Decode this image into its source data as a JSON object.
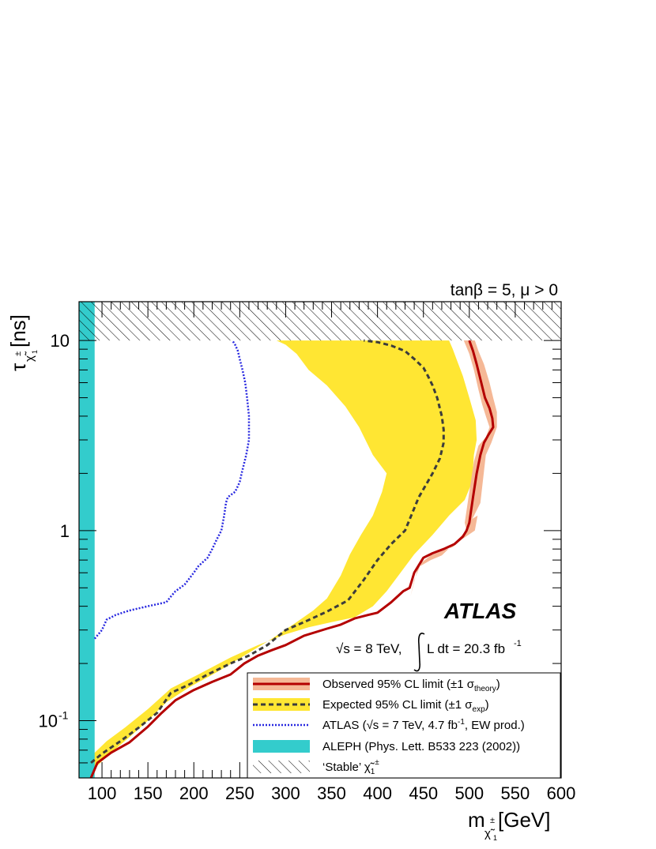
{
  "chart_data": {
    "type": "line",
    "title": "",
    "top_annotation": "tanβ = 5, μ > 0",
    "experiment_label": "ATLAS",
    "energy_label": "√s = 8 TeV,",
    "lumi_label": "L dt = 20.3 fb",
    "lumi_superscript": "-1",
    "xlabel_main": "m",
    "xlabel_sub": "χ̃",
    "xlabel_sub_index": "1",
    "xlabel_sup": "±",
    "xlabel_unit": " [GeV]",
    "ylabel_main": "τ",
    "ylabel_sub": "χ̃",
    "ylabel_sub_index": "1",
    "ylabel_sup": "±",
    "ylabel_unit": " [ns]",
    "x_scale": "linear",
    "y_scale": "log",
    "xlim": [
      75,
      600
    ],
    "ylim": [
      0.05,
      16
    ],
    "x_ticks": [
      "100",
      "150",
      "200",
      "250",
      "300",
      "350",
      "400",
      "450",
      "500",
      "550",
      "600"
    ],
    "x_tick_values": [
      100,
      150,
      200,
      250,
      300,
      350,
      400,
      450,
      500,
      550,
      600
    ],
    "y_tick_labels": [
      {
        "value": 0.1,
        "base": "10",
        "exp": "-1"
      },
      {
        "value": 1,
        "base": "1",
        "exp": ""
      },
      {
        "value": 10,
        "base": "10",
        "exp": ""
      }
    ],
    "legend_position": "bottom-right",
    "legend": [
      {
        "text": "Observed 95% CL limit (±1 σ",
        "sub": "theory",
        "tail": ")",
        "style": "observed"
      },
      {
        "text": "Expected 95% CL limit (±1 σ",
        "sub": "exp",
        "tail": ")",
        "style": "expected"
      },
      {
        "text": "ATLAS (√s = 7 TeV, 4.7 fb",
        "sup": "-1",
        "tail": ", EW prod.)",
        "style": "atlas7"
      },
      {
        "text": "ALEPH (Phys. Lett. B533 223 (2002))",
        "style": "aleph"
      },
      {
        "text": "‘Stable’ ",
        "math": "χ̃",
        "math_sub": "1",
        "math_sup": "±",
        "style": "stable"
      }
    ],
    "colors": {
      "observed_line": "#b40000",
      "observed_band": "#f5b896",
      "expected_band": "#ffe633",
      "expected_line": "#3c3c3c",
      "atlas7_line": "#2828e0",
      "aleph": "#33cccc",
      "hatch": "#000000"
    },
    "stable_region": {
      "x_range": [
        75,
        600
      ],
      "y_range": [
        10,
        16
      ]
    },
    "aleph_region": {
      "x_range": [
        75,
        92
      ],
      "y_range": [
        0.05,
        16
      ]
    },
    "series": [
      {
        "name": "Observed 95% CL limit",
        "style": "observed",
        "x": [
          88,
          95,
          110,
          130,
          150,
          165,
          180,
          200,
          220,
          240,
          255,
          270,
          285,
          300,
          320,
          345,
          360,
          375,
          390,
          400,
          415,
          428,
          435,
          440,
          450,
          460,
          472,
          484,
          493,
          497,
          500,
          504,
          508,
          512,
          516,
          521,
          526,
          525,
          522,
          517,
          513,
          508,
          504,
          500
        ],
        "y": [
          0.05,
          0.06,
          0.068,
          0.077,
          0.093,
          0.11,
          0.128,
          0.145,
          0.16,
          0.175,
          0.2,
          0.22,
          0.235,
          0.25,
          0.28,
          0.305,
          0.32,
          0.345,
          0.36,
          0.37,
          0.42,
          0.48,
          0.5,
          0.6,
          0.72,
          0.76,
          0.8,
          0.85,
          0.93,
          1.0,
          1.1,
          1.5,
          2.0,
          2.5,
          2.9,
          3.2,
          3.5,
          3.9,
          4.4,
          5.0,
          6.0,
          7.5,
          8.8,
          10
        ]
      },
      {
        "name": "Expected 95% CL limit",
        "style": "expected",
        "x": [
          88,
          100,
          120,
          140,
          160,
          175,
          195,
          215,
          240,
          260,
          280,
          300,
          320,
          345,
          368,
          385,
          400,
          415,
          430,
          445,
          460,
          468,
          472,
          472,
          470,
          465,
          460,
          455,
          450,
          440,
          430,
          415,
          400,
          385
        ],
        "y": [
          0.06,
          0.067,
          0.078,
          0.092,
          0.11,
          0.14,
          0.155,
          0.175,
          0.2,
          0.22,
          0.25,
          0.3,
          0.33,
          0.375,
          0.43,
          0.55,
          0.7,
          0.85,
          1.0,
          1.5,
          2.0,
          2.4,
          2.9,
          3.4,
          4.0,
          5.0,
          5.8,
          6.5,
          7.2,
          8.0,
          8.8,
          9.4,
          9.8,
          10
        ]
      },
      {
        "name": "ATLAS (√s = 7 TeV, 4.7 fb⁻¹, EW prod.)",
        "style": "atlas7",
        "x": [
          92,
          100,
          105,
          115,
          130,
          150,
          170,
          175,
          180,
          190,
          200,
          205,
          215,
          220,
          225,
          230,
          233,
          235,
          237,
          245,
          250,
          252,
          257,
          260,
          260,
          258,
          256,
          253,
          250,
          248,
          245,
          242
        ],
        "y": [
          0.27,
          0.3,
          0.34,
          0.36,
          0.38,
          0.4,
          0.42,
          0.45,
          0.48,
          0.52,
          0.6,
          0.65,
          0.72,
          0.8,
          0.9,
          1.0,
          1.2,
          1.4,
          1.5,
          1.6,
          1.8,
          2.0,
          2.5,
          3.0,
          4.0,
          5.0,
          6.0,
          7.0,
          8.0,
          8.8,
          9.5,
          10
        ]
      }
    ],
    "bands": {
      "observed_band": {
        "outer": [
          [
            497,
            1.0
          ],
          [
            512,
            1.4
          ],
          [
            518,
            2.5
          ],
          [
            524,
            2.9
          ],
          [
            530,
            3.5
          ],
          [
            530,
            4.2
          ],
          [
            526,
            5.0
          ],
          [
            522,
            6.0
          ],
          [
            516,
            7.5
          ],
          [
            510,
            8.8
          ],
          [
            506,
            10
          ]
        ],
        "inner": [
          [
            494,
            10
          ],
          [
            500,
            8.5
          ],
          [
            505,
            7.0
          ],
          [
            510,
            5.5
          ],
          [
            514,
            4.6
          ],
          [
            518,
            4.0
          ],
          [
            522,
            3.5
          ],
          [
            518,
            3.1
          ],
          [
            510,
            2.8
          ],
          [
            505,
            2.3
          ],
          [
            500,
            1.6
          ],
          [
            495,
            1.1
          ]
        ],
        "lower_outer": [
          [
            440,
            0.55
          ],
          [
            448,
            0.68
          ],
          [
            458,
            0.74
          ],
          [
            470,
            0.78
          ],
          [
            482,
            0.82
          ],
          [
            492,
            0.9
          ],
          [
            506,
            1.0
          ],
          [
            509,
            1.2
          ]
        ],
        "lower_inner": [
          [
            503,
            1.15
          ],
          [
            495,
            0.98
          ],
          [
            485,
            0.87
          ],
          [
            470,
            0.74
          ],
          [
            458,
            0.7
          ],
          [
            444,
            0.64
          ],
          [
            436,
            0.45
          ]
        ]
      },
      "expected_band": {
        "outer": [
          [
            88,
            0.065
          ],
          [
            105,
            0.078
          ],
          [
            125,
            0.092
          ],
          [
            150,
            0.115
          ],
          [
            175,
            0.148
          ],
          [
            205,
            0.175
          ],
          [
            240,
            0.215
          ],
          [
            270,
            0.25
          ],
          [
            300,
            0.285
          ],
          [
            325,
            0.31
          ],
          [
            350,
            0.33
          ],
          [
            375,
            0.35
          ],
          [
            395,
            0.4
          ],
          [
            410,
            0.48
          ],
          [
            425,
            0.6
          ],
          [
            440,
            0.75
          ],
          [
            460,
            0.95
          ],
          [
            478,
            1.2
          ],
          [
            495,
            1.45
          ],
          [
            503,
            1.8
          ],
          [
            505,
            2.5
          ],
          [
            508,
            3.0
          ],
          [
            507,
            3.8
          ],
          [
            500,
            5.0
          ],
          [
            493,
            6.5
          ],
          [
            486,
            8.0
          ],
          [
            482,
            9.0
          ],
          [
            478,
            10
          ]
        ],
        "inner": [
          [
            290,
            10
          ],
          [
            300,
            9.5
          ],
          [
            312,
            8.5
          ],
          [
            325,
            7.0
          ],
          [
            345,
            5.8
          ],
          [
            365,
            4.5
          ],
          [
            380,
            3.5
          ],
          [
            395,
            2.5
          ],
          [
            410,
            2.0
          ],
          [
            405,
            1.6
          ],
          [
            395,
            1.2
          ],
          [
            382,
            0.95
          ],
          [
            370,
            0.75
          ],
          [
            360,
            0.58
          ],
          [
            352,
            0.5
          ],
          [
            345,
            0.44
          ],
          [
            330,
            0.38
          ],
          [
            308,
            0.32
          ],
          [
            285,
            0.27
          ],
          [
            255,
            0.22
          ],
          [
            225,
            0.18
          ],
          [
            195,
            0.15
          ],
          [
            170,
            0.125
          ],
          [
            150,
            0.1
          ],
          [
            130,
            0.082
          ],
          [
            110,
            0.068
          ],
          [
            95,
            0.058
          ],
          [
            88,
            0.053
          ]
        ]
      }
    }
  }
}
